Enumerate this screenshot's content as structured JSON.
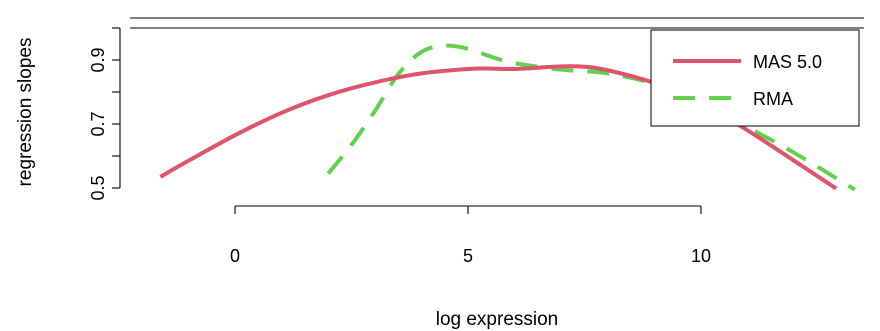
{
  "chart_data": {
    "type": "line",
    "title": "",
    "xlabel": "log expression",
    "ylabel": "regression slopes",
    "xlim": [
      -2,
      13.5
    ],
    "ylim": [
      0.45,
      1.0
    ],
    "xticks": [
      0,
      5,
      10
    ],
    "xtick_labels": [
      "0",
      "5",
      "10"
    ],
    "yticks": [
      0.5,
      0.7,
      0.9
    ],
    "ytick_labels": [
      "0.5",
      "0.7",
      "0.9"
    ],
    "y_minor_ticks": [
      0.6,
      0.8,
      1.0
    ],
    "reference_line_y": 1.0,
    "grid": false,
    "legend_position": "top-right",
    "series": [
      {
        "name": "MAS 5.0",
        "color": "#DF536B",
        "style": "solid",
        "x": [
          -1.6,
          -1,
          0,
          1,
          2,
          3,
          4,
          5,
          5.5,
          6,
          7,
          7.5,
          8,
          9,
          10,
          11,
          12,
          12.9
        ],
        "y": [
          0.535,
          0.585,
          0.665,
          0.735,
          0.79,
          0.83,
          0.858,
          0.872,
          0.873,
          0.872,
          0.88,
          0.879,
          0.868,
          0.828,
          0.765,
          0.68,
          0.585,
          0.498
        ]
      },
      {
        "name": "RMA",
        "color": "#61D04F",
        "style": "dashed",
        "x": [
          2,
          2.5,
          3,
          3.5,
          4,
          4.5,
          5,
          5.5,
          6,
          7,
          8,
          9,
          10,
          11,
          12,
          13.3
        ],
        "y": [
          0.545,
          0.635,
          0.74,
          0.855,
          0.925,
          0.945,
          0.935,
          0.91,
          0.89,
          0.87,
          0.858,
          0.825,
          0.77,
          0.69,
          0.61,
          0.495
        ]
      }
    ]
  }
}
